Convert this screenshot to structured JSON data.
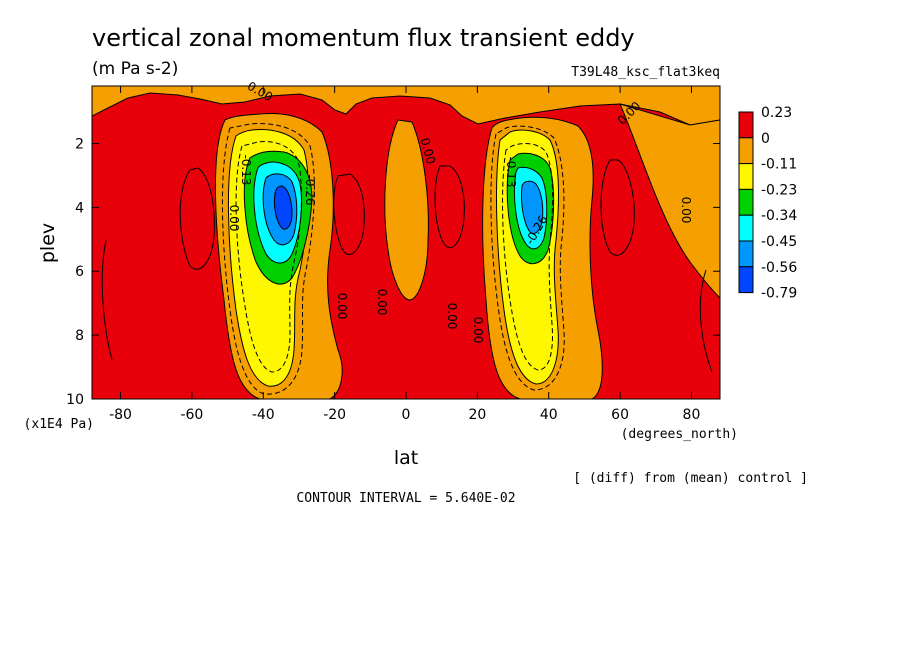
{
  "chart_data": {
    "type": "heatmap",
    "plot_kind": "filled contour",
    "title": "vertical zonal momentum flux transient eddy",
    "units": "(m Pa s-2)",
    "experiment": "T39L48_ksc_flat3keq",
    "comparison_note": "[ (diff) from (mean) control ]",
    "contour_interval_text": "CONTOUR INTERVAL = 5.640E-02",
    "xlabel": "lat",
    "x_units": "(degrees_north)",
    "ylabel": "plev",
    "y_units": "(x1E4 Pa)",
    "xlim": [
      -88,
      88
    ],
    "ylim": [
      0.2,
      10
    ],
    "y_reversed": true,
    "x_ticks": [
      "-80",
      "-60",
      "-40",
      "-20",
      "0",
      "20",
      "40",
      "60",
      "80"
    ],
    "y_ticks": [
      "2",
      "4",
      "6",
      "8",
      "10"
    ],
    "colorbar": {
      "labels": [
        "0.23",
        "0",
        "-0.11",
        "-0.23",
        "-0.34",
        "-0.45",
        "-0.56",
        "-0.79"
      ],
      "colors": [
        "#e8000b",
        "#f5a000",
        "#fff700",
        "#00d000",
        "#00ffff",
        "#0096ff",
        "#0046ff"
      ]
    },
    "contour_labels": [
      "0.00",
      "0.00",
      "0.00",
      "0.00",
      "0.00",
      "0.00",
      "0.00",
      "0.00",
      "0.00",
      "-0.13",
      "-0.13",
      "-0.26",
      "-0.26"
    ],
    "features": [
      {
        "name": "southern minimum",
        "lat": -35,
        "plev": 3.8,
        "value": -0.79
      },
      {
        "name": "northern minimum",
        "lat": 35,
        "plev": 3.8,
        "value": -0.56
      }
    ]
  }
}
